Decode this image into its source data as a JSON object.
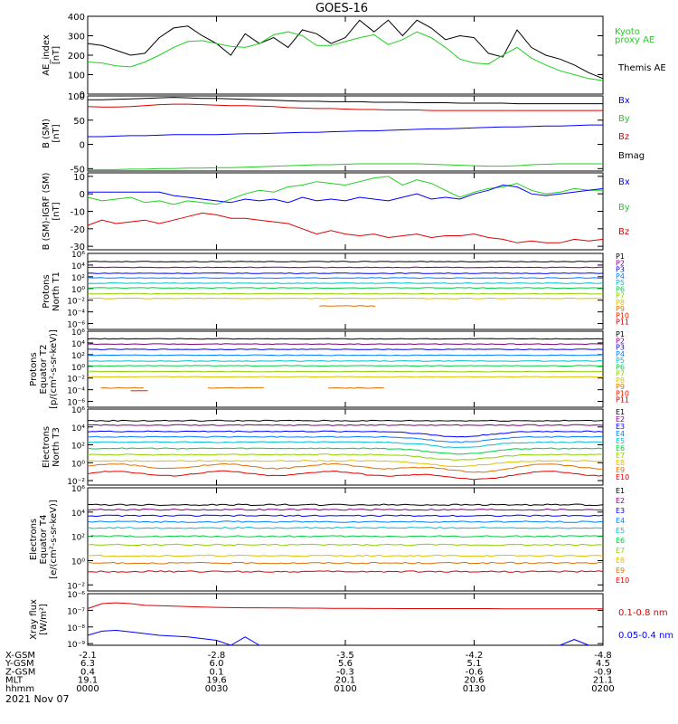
{
  "title": "GOES-16",
  "date_label": "2021 Nov 07",
  "colors": {
    "black": "#000000",
    "red": "#e00000",
    "green": "#20d020",
    "blue": "#0000ff",
    "orange": "#e07000"
  },
  "chart_data": [
    {
      "id": "ae",
      "type": "line",
      "ylabel": "AE_index [nT]",
      "ylim": [
        0,
        400
      ],
      "log": false,
      "yticks": [
        {
          "v": 0,
          "t": "0"
        },
        {
          "v": 100,
          "t": "100"
        },
        {
          "v": 200,
          "t": "200"
        },
        {
          "v": 300,
          "t": "300"
        },
        {
          "v": 400,
          "t": "400"
        }
      ],
      "legend": [
        {
          "name": "Kyoto proxy AE",
          "color": "#20d020"
        },
        {
          "name": "Themis AE",
          "color": "#000000"
        }
      ],
      "series": [
        {
          "name": "Themis AE",
          "color": "#000000",
          "values": [
            260,
            250,
            225,
            200,
            210,
            290,
            340,
            350,
            300,
            260,
            200,
            310,
            260,
            290,
            240,
            330,
            310,
            260,
            290,
            380,
            320,
            380,
            300,
            380,
            340,
            280,
            300,
            290,
            210,
            190,
            330,
            240,
            200,
            180,
            150,
            110,
            80
          ]
        },
        {
          "name": "Kyoto proxy AE",
          "color": "#20d020",
          "values": [
            165,
            160,
            145,
            140,
            165,
            200,
            240,
            270,
            275,
            260,
            245,
            240,
            260,
            305,
            320,
            300,
            250,
            250,
            270,
            290,
            305,
            255,
            280,
            320,
            290,
            240,
            180,
            160,
            155,
            200,
            240,
            185,
            150,
            120,
            100,
            80,
            70
          ]
        }
      ]
    },
    {
      "id": "bsm",
      "type": "line",
      "ylabel": "B (SM) [nT]",
      "ylim": [
        -55,
        100
      ],
      "log": false,
      "yticks": [
        {
          "v": -50,
          "t": "-50"
        },
        {
          "v": 0,
          "t": "0"
        },
        {
          "v": 50,
          "t": "50"
        },
        {
          "v": 100,
          "t": "100"
        }
      ],
      "legend": [
        {
          "name": "Bx",
          "color": "#0000ff"
        },
        {
          "name": "By",
          "color": "#20d020"
        },
        {
          "name": "Bz",
          "color": "#e00000"
        },
        {
          "name": "Bmag",
          "color": "#000000"
        }
      ],
      "series": [
        {
          "name": "Bmag",
          "color": "#000000",
          "values": [
            92,
            92,
            93,
            94,
            95,
            96,
            97,
            96,
            95,
            95,
            94,
            93,
            92,
            91,
            90,
            89,
            89,
            88,
            88,
            88,
            87,
            87,
            87,
            86,
            86,
            86,
            85,
            85,
            85,
            85,
            84,
            84,
            84,
            84,
            84,
            84,
            84
          ]
        },
        {
          "name": "Bz",
          "color": "#e00000",
          "values": [
            78,
            77,
            77,
            78,
            80,
            82,
            83,
            83,
            82,
            81,
            80,
            80,
            79,
            78,
            76,
            75,
            74,
            74,
            73,
            72,
            72,
            71,
            71,
            71,
            70,
            70,
            70,
            70,
            70,
            70,
            70,
            70,
            70,
            70,
            70,
            70,
            70
          ]
        },
        {
          "name": "Bx",
          "color": "#0000ff",
          "values": [
            16,
            16,
            17,
            18,
            18,
            19,
            20,
            20,
            20,
            20,
            21,
            22,
            22,
            23,
            24,
            25,
            25,
            26,
            27,
            28,
            28,
            29,
            30,
            31,
            32,
            32,
            33,
            34,
            35,
            36,
            36,
            37,
            38,
            38,
            39,
            40,
            40
          ]
        },
        {
          "name": "By",
          "color": "#20d020",
          "values": [
            -52,
            -52,
            -52,
            -51,
            -51,
            -50,
            -50,
            -49,
            -49,
            -48,
            -48,
            -47,
            -46,
            -45,
            -44,
            -43,
            -42,
            -42,
            -41,
            -40,
            -40,
            -40,
            -40,
            -40,
            -41,
            -42,
            -43,
            -44,
            -45,
            -45,
            -44,
            -42,
            -41,
            -40,
            -40,
            -40,
            -40
          ]
        }
      ]
    },
    {
      "id": "bigrf",
      "type": "line",
      "ylabel": "B (SM)-IGRF (SM) [nT]",
      "ylim": [
        -32,
        12
      ],
      "log": false,
      "yticks": [
        {
          "v": -30,
          "t": "-30"
        },
        {
          "v": -20,
          "t": "-20"
        },
        {
          "v": -10,
          "t": "-10"
        },
        {
          "v": 0,
          "t": "0"
        },
        {
          "v": 10,
          "t": "10"
        }
      ],
      "legend": [
        {
          "name": "Bx",
          "color": "#0000ff"
        },
        {
          "name": "By",
          "color": "#20d020"
        },
        {
          "name": "Bz",
          "color": "#e00000"
        }
      ],
      "series": [
        {
          "name": "By",
          "color": "#20d020",
          "values": [
            -2,
            -4,
            -3,
            -2,
            -5,
            -4,
            -6,
            -4,
            -5,
            -6,
            -3,
            0,
            2,
            1,
            4,
            5,
            7,
            6,
            5,
            7,
            9,
            10,
            5,
            8,
            6,
            2,
            -2,
            1,
            3,
            4,
            6,
            2,
            0,
            1,
            3,
            2,
            2
          ]
        },
        {
          "name": "Bx",
          "color": "#0000ff",
          "values": [
            1,
            1,
            1,
            1,
            1,
            1,
            -1,
            -2,
            -3,
            -4,
            -5,
            -3,
            -4,
            -3,
            -5,
            -2,
            -4,
            -3,
            -4,
            -2,
            -3,
            -4,
            -2,
            0,
            -3,
            -2,
            -3,
            0,
            2,
            5,
            4,
            0,
            -1,
            0,
            1,
            2,
            3
          ]
        },
        {
          "name": "Bz",
          "color": "#e00000",
          "values": [
            -18,
            -15,
            -17,
            -16,
            -15,
            -17,
            -15,
            -13,
            -11,
            -12,
            -14,
            -14,
            -15,
            -16,
            -17,
            -20,
            -23,
            -21,
            -23,
            -24,
            -23,
            -25,
            -24,
            -23,
            -25,
            -24,
            -24,
            -23,
            -25,
            -26,
            -28,
            -27,
            -28,
            -28,
            -26,
            -27,
            -26
          ]
        }
      ]
    },
    {
      "id": "pt1",
      "type": "line",
      "ylabel": "Protons North T1",
      "ylim": [
        -7,
        6
      ],
      "log": true,
      "yticks": [
        {
          "v": -6,
          "t": "10⁻⁶"
        },
        {
          "v": -4,
          "t": "10⁻⁴"
        },
        {
          "v": -2,
          "t": "10⁻²"
        },
        {
          "v": 0,
          "t": "10⁰"
        },
        {
          "v": 2,
          "t": "10²"
        },
        {
          "v": 4,
          "t": "10⁴"
        },
        {
          "v": 6,
          "t": "10⁶"
        }
      ],
      "channels": [
        "P1",
        "P2",
        "P3",
        "P4",
        "P5",
        "P6",
        "P7",
        "P8",
        "P9",
        "P10",
        "P11"
      ],
      "series": [
        {
          "name": "P1",
          "color": "#000000",
          "log_level": 4.6
        },
        {
          "name": "P2",
          "color": "#800080",
          "log_level": 3.6
        },
        {
          "name": "P3",
          "color": "#0000ff",
          "log_level": 2.6
        },
        {
          "name": "P4",
          "color": "#0080ff",
          "log_level": 1.8
        },
        {
          "name": "P5",
          "color": "#00c0d0",
          "log_level": 0.9
        },
        {
          "name": "P6",
          "color": "#00d040",
          "log_level": 0.1
        },
        {
          "name": "P7",
          "color": "#90d000",
          "log_level": -0.9
        },
        {
          "name": "P8",
          "color": "#e0c000",
          "log_level": -1.7
        },
        {
          "name": "P9",
          "color": "#e07000",
          "log_level": -3.0,
          "range": [
            0.45,
            0.56
          ]
        }
      ]
    },
    {
      "id": "pt2",
      "type": "line",
      "ylabel": "Protons Equator T2 [p/(cm²-s-sr-keV)]",
      "ylim": [
        -7,
        6
      ],
      "log": true,
      "yticks": [
        {
          "v": -6,
          "t": "10⁻⁶"
        },
        {
          "v": -4,
          "t": "10⁻⁴"
        },
        {
          "v": -2,
          "t": "10⁻²"
        },
        {
          "v": 0,
          "t": "10⁰"
        },
        {
          "v": 2,
          "t": "10²"
        },
        {
          "v": 4,
          "t": "10⁴"
        },
        {
          "v": 6,
          "t": "10⁶"
        }
      ],
      "channels": [
        "P1",
        "P2",
        "P3",
        "P4",
        "P5",
        "P6",
        "P7",
        "P8",
        "P9",
        "P10",
        "P11"
      ],
      "series": [
        {
          "name": "P1",
          "color": "#000000",
          "log_level": 4.7
        },
        {
          "name": "P2",
          "color": "#800080",
          "log_level": 3.8
        },
        {
          "name": "P3",
          "color": "#0000ff",
          "log_level": 2.9
        },
        {
          "name": "P4",
          "color": "#0080ff",
          "log_level": 1.9
        },
        {
          "name": "P5",
          "color": "#00c0d0",
          "log_level": 0.9
        },
        {
          "name": "P6",
          "color": "#00d040",
          "log_level": 0.1
        },
        {
          "name": "P7",
          "color": "#90d000",
          "log_level": -0.9
        },
        {
          "name": "P8",
          "color": "#e0c000",
          "log_level": -1.8
        },
        {
          "name": "P9",
          "color": "#e07000",
          "log_level": -3.7,
          "range": [
            0.02,
            0.65
          ]
        },
        {
          "name": "P10",
          "color": "#e02000",
          "log_level": -4.2,
          "range": [
            0.08,
            0.12
          ]
        }
      ]
    },
    {
      "id": "et3",
      "type": "line",
      "ylabel": "Electrons North T3",
      "ylim": [
        -2.5,
        6
      ],
      "log": true,
      "yticks": [
        {
          "v": -2,
          "t": "10⁻²"
        },
        {
          "v": 0,
          "t": "10⁰"
        },
        {
          "v": 2,
          "t": "10²"
        },
        {
          "v": 4,
          "t": "10⁴"
        },
        {
          "v": 6,
          "t": "10⁶"
        }
      ],
      "channels": [
        "E1",
        "E2",
        "E3",
        "E4",
        "E5",
        "E6",
        "E7",
        "E8",
        "E9",
        "E10"
      ],
      "series": [
        {
          "name": "E1",
          "color": "#000000",
          "log_level": 4.7
        },
        {
          "name": "E2",
          "color": "#800080",
          "log_level": 4.2
        },
        {
          "name": "E3",
          "color": "#0000ff",
          "log_level": 3.5
        },
        {
          "name": "E4",
          "color": "#0080ff",
          "log_level": 2.9
        },
        {
          "name": "E5",
          "color": "#00c0d0",
          "log_level": 2.3
        },
        {
          "name": "E6",
          "color": "#00d040",
          "log_level": 1.6
        },
        {
          "name": "E7",
          "color": "#90d000",
          "log_level": 0.9
        },
        {
          "name": "E8",
          "color": "#e0c000",
          "log_level": 0.2
        },
        {
          "name": "E9",
          "color": "#e07000",
          "log_level": -0.4
        },
        {
          "name": "E10",
          "color": "#e00000",
          "log_level": -1.2
        }
      ]
    },
    {
      "id": "et4",
      "type": "line",
      "ylabel": "Electrons Equator T4 [e/(cm²-s-sr-keV)]",
      "ylim": [
        -2.5,
        6
      ],
      "log": true,
      "yticks": [
        {
          "v": -2,
          "t": "10⁻²"
        },
        {
          "v": 0,
          "t": "10⁰"
        },
        {
          "v": 2,
          "t": "10²"
        },
        {
          "v": 4,
          "t": "10⁴"
        },
        {
          "v": 6,
          "t": "10⁶"
        }
      ],
      "channels": [
        "E1",
        "E2",
        "E3",
        "E4",
        "E5",
        "E6",
        "E7",
        "E8",
        "E9",
        "E10"
      ],
      "series": [
        {
          "name": "E1",
          "color": "#000000",
          "log_level": 4.6
        },
        {
          "name": "E2",
          "color": "#800080",
          "log_level": 4.2
        },
        {
          "name": "E3",
          "color": "#0000ff",
          "log_level": 3.7
        },
        {
          "name": "E4",
          "color": "#0080ff",
          "log_level": 3.2
        },
        {
          "name": "E5",
          "color": "#00c0d0",
          "log_level": 2.7
        },
        {
          "name": "E6",
          "color": "#00d040",
          "log_level": 2.0
        },
        {
          "name": "E7",
          "color": "#90d000",
          "log_level": 1.3
        },
        {
          "name": "E8",
          "color": "#e0c000",
          "log_level": 0.4
        },
        {
          "name": "E9",
          "color": "#e07000",
          "log_level": -0.2
        },
        {
          "name": "E10",
          "color": "#e00000",
          "log_level": -0.9
        }
      ]
    },
    {
      "id": "xray",
      "type": "line",
      "ylabel": "Xray flux [W/m²]",
      "ylim": [
        -9.1,
        -6.0
      ],
      "log": true,
      "yticks": [
        {
          "v": -9,
          "t": "10⁻⁹"
        },
        {
          "v": -8,
          "t": "10⁻⁸"
        },
        {
          "v": -7,
          "t": "10⁻⁷"
        },
        {
          "v": -6,
          "t": "10⁻⁶"
        }
      ],
      "legend": [
        {
          "name": "0.1-0.8 nm",
          "color": "#e00000"
        },
        {
          "name": "0.05-0.4 nm",
          "color": "#0000ff"
        }
      ],
      "series": [
        {
          "name": "0.1-0.8 nm",
          "color": "#e00000",
          "values": [
            -6.9,
            -6.6,
            -6.55,
            -6.6,
            -6.7,
            -6.72,
            -6.75,
            -6.78,
            -6.8,
            -6.82,
            -6.84,
            -6.85,
            -6.85,
            -6.86,
            -6.86,
            -6.87,
            -6.87,
            -6.88,
            -6.88,
            -6.88,
            -6.89,
            -6.89,
            -6.9,
            -6.9,
            -6.9,
            -6.9,
            -6.9,
            -6.9,
            -6.9,
            -6.91,
            -6.91,
            -6.91,
            -6.91,
            -6.91,
            -6.91,
            -6.91,
            -6.91
          ]
        },
        {
          "name": "0.05-0.4 nm",
          "color": "#0000ff",
          "values": [
            -8.5,
            -8.25,
            -8.2,
            -8.3,
            -8.4,
            -8.5,
            -8.55,
            -8.6,
            -8.7,
            -8.8,
            -9.1,
            -8.6,
            -9.1,
            null,
            null,
            null,
            null,
            null,
            null,
            null,
            null,
            null,
            null,
            null,
            null,
            null,
            null,
            null,
            null,
            null,
            null,
            null,
            null,
            -9.1,
            -8.75,
            -9.1,
            null
          ]
        }
      ]
    }
  ],
  "footer": {
    "row_labels": [
      "X-GSM",
      "Y-GSM",
      "Z-GSM",
      "MLT",
      "hhmm"
    ],
    "columns": [
      {
        "xgsm": "-2.1",
        "ygsm": "6.3",
        "zgsm": "0.4",
        "mlt": "19.1",
        "hhmm": "0000"
      },
      {
        "xgsm": "-2.8",
        "ygsm": "6.0",
        "zgsm": "0.1",
        "mlt": "19.6",
        "hhmm": "0030"
      },
      {
        "xgsm": "-3.5",
        "ygsm": "5.6",
        "zgsm": "-0.3",
        "mlt": "20.1",
        "hhmm": "0100"
      },
      {
        "xgsm": "-4.2",
        "ygsm": "5.1",
        "zgsm": "-0.6",
        "mlt": "20.6",
        "hhmm": "0130"
      },
      {
        "xgsm": "-4.8",
        "ygsm": "4.5",
        "zgsm": "-0.9",
        "mlt": "21.1",
        "hhmm": "0200"
      }
    ]
  }
}
